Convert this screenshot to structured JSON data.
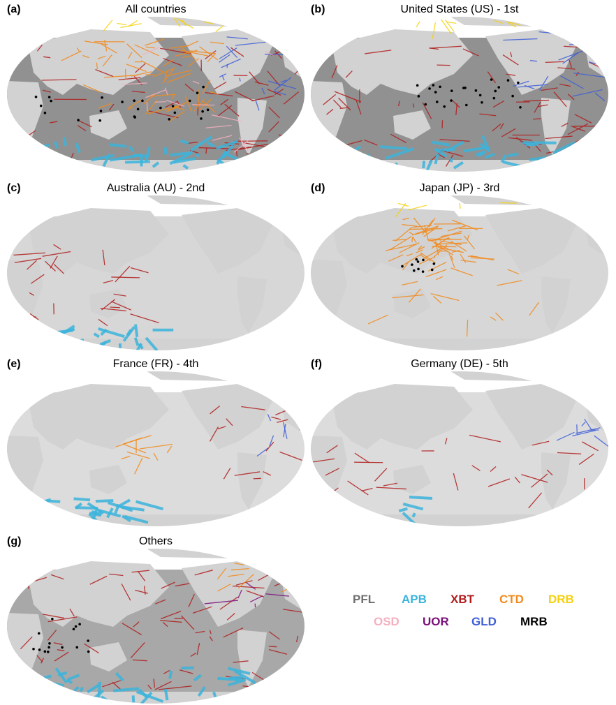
{
  "panels": [
    {
      "label": "(a)",
      "title": "All countries"
    },
    {
      "label": "(b)",
      "title": "United States (US) - 1st"
    },
    {
      "label": "(c)",
      "title": "Australia (AU) - 2nd"
    },
    {
      "label": "(d)",
      "title": "Japan (JP) - 3rd"
    },
    {
      "label": "(e)",
      "title": "France (FR) - 4th"
    },
    {
      "label": "(f)",
      "title": "Germany (DE) - 5th"
    },
    {
      "label": "(g)",
      "title": "Others"
    }
  ],
  "legend": [
    {
      "name": "PFL",
      "color": "#6e6e6e"
    },
    {
      "name": "APB",
      "color": "#3cb4dc"
    },
    {
      "name": "XBT",
      "color": "#b01c1c"
    },
    {
      "name": "CTD",
      "color": "#f28a1c"
    },
    {
      "name": "DRB",
      "color": "#f5d10c"
    },
    {
      "name": "OSD",
      "color": "#f4b0c0"
    },
    {
      "name": "UOR",
      "color": "#7a0f7a"
    },
    {
      "name": "GLD",
      "color": "#3f5fd6"
    },
    {
      "name": "MRB",
      "color": "#000000"
    }
  ]
}
